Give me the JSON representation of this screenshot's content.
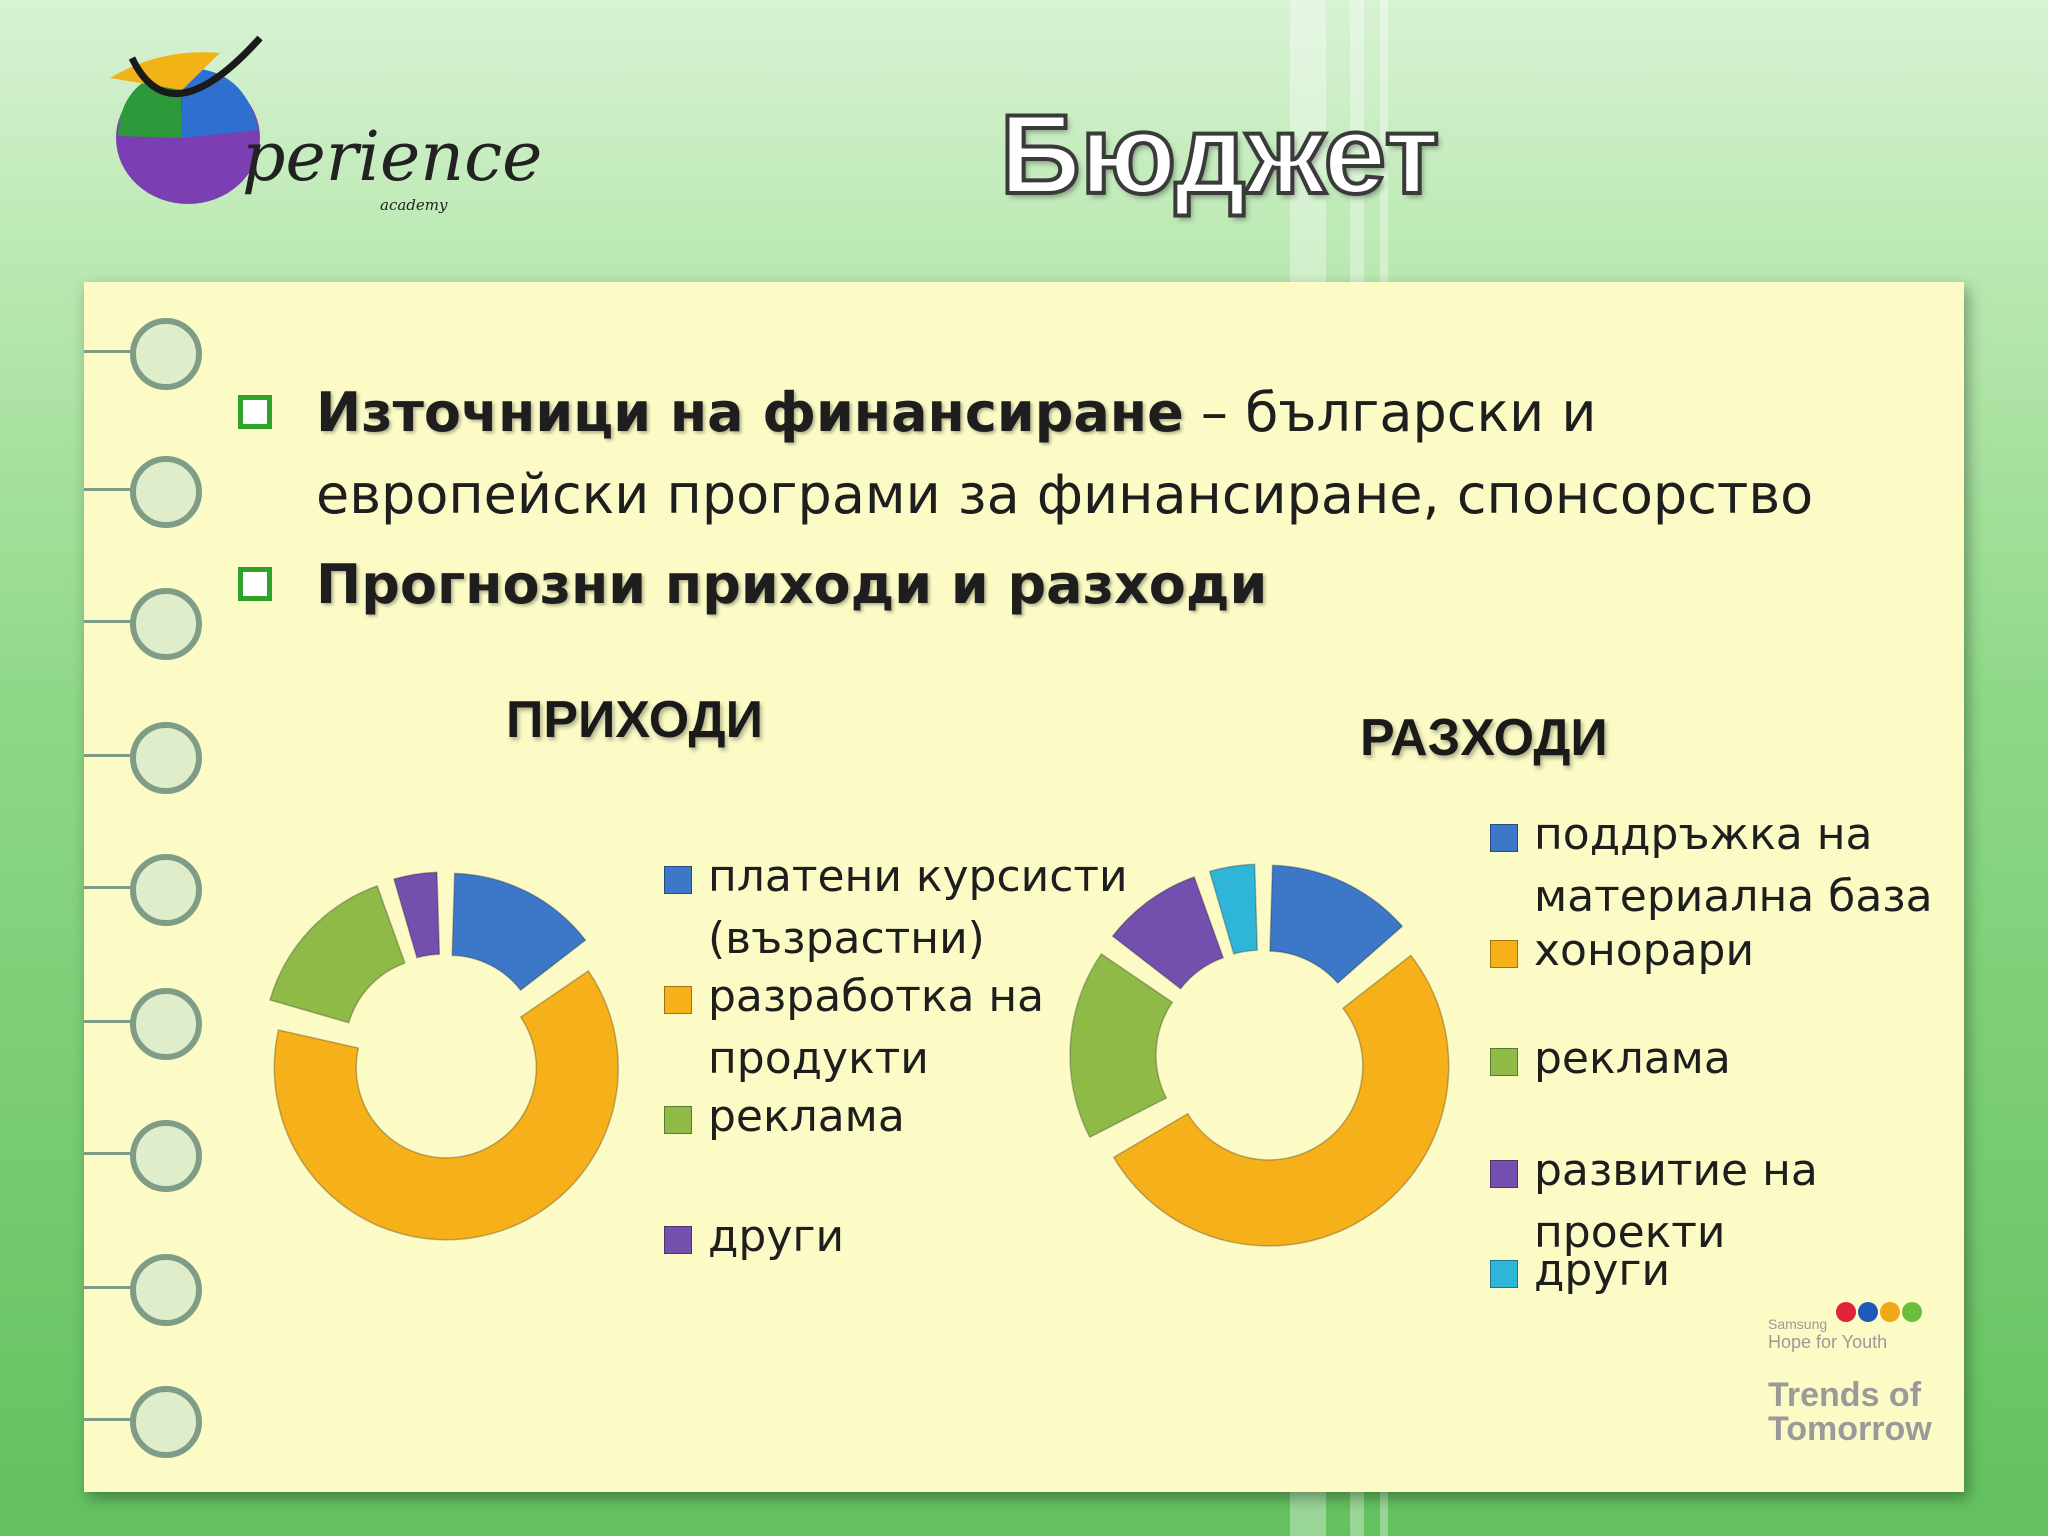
{
  "slide": {
    "title": "Бюджет",
    "logo": {
      "word": "perience",
      "sub": "academy"
    },
    "bullets": [
      {
        "highlight": "Източници на финансиране",
        "rest": " – български и европейски програми за финансиране, спонсорство"
      },
      {
        "highlight": "Прогнозни приходи и разходи",
        "rest": ""
      }
    ],
    "badge": {
      "line1": "Samsung",
      "line2": "Hope for Youth",
      "line3": "Trends of Tomorrow"
    }
  },
  "colors": {
    "blue": "#3d78c8",
    "orange": "#f5b01a",
    "green": "#8fba48",
    "purple": "#7350ad",
    "cyan": "#2fb5d8"
  },
  "chart_data": [
    {
      "type": "pie",
      "title": "ПРИХОДИ",
      "categories": [
        "платени курсисти (възрастни)",
        "разработка на продукти",
        "реклама",
        "други"
      ],
      "values": [
        15,
        64,
        16,
        5
      ],
      "legend_position": "right"
    },
    {
      "type": "pie",
      "title": "РАЗХОДИ",
      "categories": [
        "поддръжка на материална база",
        "хонорари",
        "реклама",
        "развитие на проекти",
        "други"
      ],
      "values": [
        14,
        53,
        18,
        10,
        5
      ],
      "legend_position": "right"
    }
  ]
}
